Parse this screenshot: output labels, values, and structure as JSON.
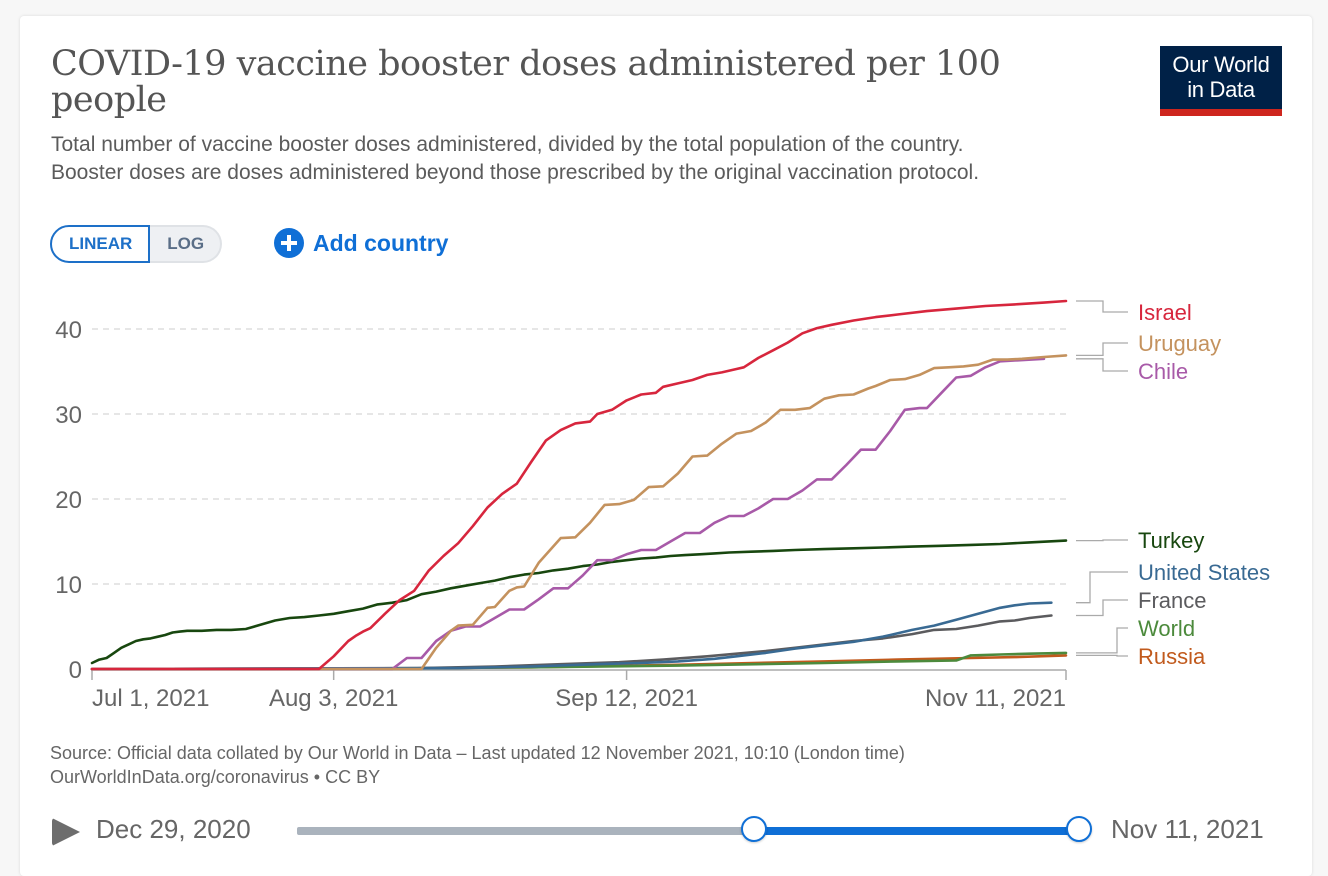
{
  "header": {
    "title": "COVID-19 vaccine booster doses administered per 100 people",
    "subtitle_line1": "Total number of vaccine booster doses administered, divided by the total population of the country.",
    "subtitle_line2": "Booster doses are doses administered beyond those prescribed by the original vaccination protocol.",
    "logo_line1": "Our World",
    "logo_line2": "in Data"
  },
  "controls": {
    "linear_label": "LINEAR",
    "log_label": "LOG",
    "active_scale": "linear",
    "add_country_label": "Add country",
    "add_icon": "plus-circle-icon"
  },
  "footer": {
    "source": "Source: Official data collated by Our World in Data – Last updated 12 November 2021, 10:10 (London time)",
    "license": "OurWorldInData.org/coronavirus • CC BY"
  },
  "timeline": {
    "start_label": "Dec 29, 2020",
    "end_label": "Nov 11, 2021",
    "range_start_fraction": 0.585,
    "range_end_fraction": 1.0,
    "play_icon": "play-icon"
  },
  "colors": {
    "accent": "#0f6fd6",
    "logo_bg": "#002147",
    "logo_bar": "#ce261e"
  },
  "chart_data": {
    "type": "line",
    "title": "COVID-19 vaccine booster doses administered per 100 people",
    "xlabel": "",
    "ylabel": "",
    "x_start": "2021-07-01",
    "x_end": "2021-11-11",
    "x_unit": "days since Jul 1, 2021",
    "x_range_days": [
      0,
      133
    ],
    "ylim": [
      0,
      43.5
    ],
    "grid": "horizontal dashed",
    "legend_placement": "right (line-end labels)",
    "x_ticks": [
      {
        "label": "Jul 1, 2021",
        "day": 0
      },
      {
        "label": "Aug 3, 2021",
        "day": 33
      },
      {
        "label": "Sep 12, 2021",
        "day": 73
      },
      {
        "label": "Nov 11, 2021",
        "day": 133
      }
    ],
    "y_ticks": [
      0,
      10,
      20,
      30,
      40
    ],
    "series": [
      {
        "name": "Israel",
        "color": "#d7263d",
        "points": [
          [
            0,
            0
          ],
          [
            31,
            0
          ],
          [
            33,
            1.5
          ],
          [
            35,
            3.3
          ],
          [
            36,
            3.9
          ],
          [
            37,
            4.4
          ],
          [
            38,
            4.8
          ],
          [
            40,
            6.5
          ],
          [
            42,
            8.1
          ],
          [
            44,
            9.2
          ],
          [
            46,
            11.6
          ],
          [
            48,
            13.3
          ],
          [
            50,
            14.8
          ],
          [
            52,
            16.8
          ],
          [
            54,
            19.0
          ],
          [
            56,
            20.6
          ],
          [
            58,
            21.8
          ],
          [
            60,
            24.4
          ],
          [
            62,
            26.9
          ],
          [
            64,
            28.1
          ],
          [
            66,
            28.9
          ],
          [
            68,
            29.1
          ],
          [
            69,
            30.0
          ],
          [
            71,
            30.5
          ],
          [
            73,
            31.6
          ],
          [
            75,
            32.3
          ],
          [
            77,
            32.5
          ],
          [
            78,
            33.2
          ],
          [
            80,
            33.6
          ],
          [
            82,
            34.0
          ],
          [
            84,
            34.6
          ],
          [
            86,
            34.9
          ],
          [
            88,
            35.3
          ],
          [
            89,
            35.5
          ],
          [
            91,
            36.6
          ],
          [
            93,
            37.5
          ],
          [
            95,
            38.4
          ],
          [
            97,
            39.5
          ],
          [
            99,
            40.1
          ],
          [
            101,
            40.5
          ],
          [
            104,
            41.0
          ],
          [
            107,
            41.4
          ],
          [
            110,
            41.7
          ],
          [
            114,
            42.1
          ],
          [
            118,
            42.4
          ],
          [
            122,
            42.7
          ],
          [
            126,
            42.9
          ],
          [
            130,
            43.1
          ],
          [
            133,
            43.3
          ]
        ]
      },
      {
        "name": "Uruguay",
        "color": "#c4925e",
        "points": [
          [
            0,
            0
          ],
          [
            45,
            0
          ],
          [
            47,
            2.5
          ],
          [
            49,
            4.5
          ],
          [
            50,
            5.1
          ],
          [
            52,
            5.2
          ],
          [
            54,
            7.2
          ],
          [
            55,
            7.3
          ],
          [
            57,
            9.2
          ],
          [
            58,
            9.6
          ],
          [
            59,
            9.7
          ],
          [
            61,
            12.5
          ],
          [
            64,
            15.4
          ],
          [
            66,
            15.5
          ],
          [
            68,
            17.2
          ],
          [
            70,
            19.3
          ],
          [
            72,
            19.4
          ],
          [
            74,
            19.9
          ],
          [
            76,
            21.4
          ],
          [
            78,
            21.5
          ],
          [
            80,
            23.0
          ],
          [
            82,
            25.0
          ],
          [
            84,
            25.1
          ],
          [
            86,
            26.5
          ],
          [
            88,
            27.7
          ],
          [
            90,
            28.0
          ],
          [
            92,
            29.0
          ],
          [
            94,
            30.5
          ],
          [
            96,
            30.5
          ],
          [
            98,
            30.7
          ],
          [
            100,
            31.8
          ],
          [
            102,
            32.2
          ],
          [
            104,
            32.3
          ],
          [
            106,
            33.0
          ],
          [
            107,
            33.3
          ],
          [
            109,
            34.0
          ],
          [
            111,
            34.1
          ],
          [
            113,
            34.6
          ],
          [
            115,
            35.4
          ],
          [
            117,
            35.5
          ],
          [
            119,
            35.6
          ],
          [
            121,
            35.8
          ],
          [
            123,
            36.4
          ],
          [
            125,
            36.4
          ],
          [
            127,
            36.5
          ],
          [
            130,
            36.7
          ],
          [
            133,
            36.9
          ]
        ]
      },
      {
        "name": "Chile",
        "color": "#a85aa8",
        "points": [
          [
            0,
            0
          ],
          [
            41,
            0
          ],
          [
            43,
            1.3
          ],
          [
            45,
            1.3
          ],
          [
            47,
            3.3
          ],
          [
            49,
            4.5
          ],
          [
            51,
            5.0
          ],
          [
            53,
            5.0
          ],
          [
            55,
            6.0
          ],
          [
            57,
            7.0
          ],
          [
            59,
            7.0
          ],
          [
            61,
            8.2
          ],
          [
            63,
            9.5
          ],
          [
            65,
            9.5
          ],
          [
            67,
            11.0
          ],
          [
            69,
            12.8
          ],
          [
            71,
            12.8
          ],
          [
            73,
            13.5
          ],
          [
            75,
            14.0
          ],
          [
            77,
            14.0
          ],
          [
            79,
            15.0
          ],
          [
            81,
            16.0
          ],
          [
            83,
            16.0
          ],
          [
            85,
            17.2
          ],
          [
            87,
            18.0
          ],
          [
            89,
            18.0
          ],
          [
            91,
            18.9
          ],
          [
            93,
            20.0
          ],
          [
            95,
            20.0
          ],
          [
            97,
            21.0
          ],
          [
            99,
            22.3
          ],
          [
            101,
            22.3
          ],
          [
            103,
            24.0
          ],
          [
            105,
            25.8
          ],
          [
            107,
            25.8
          ],
          [
            109,
            28.0
          ],
          [
            111,
            30.5
          ],
          [
            113,
            30.7
          ],
          [
            114,
            30.7
          ],
          [
            116,
            32.5
          ],
          [
            118,
            34.3
          ],
          [
            120,
            34.5
          ],
          [
            122,
            35.5
          ],
          [
            124,
            36.2
          ],
          [
            130,
            36.5
          ]
        ]
      },
      {
        "name": "Turkey",
        "color": "#18470f",
        "points": [
          [
            0,
            0.7
          ],
          [
            1,
            1.1
          ],
          [
            2,
            1.3
          ],
          [
            3,
            1.9
          ],
          [
            4,
            2.5
          ],
          [
            5,
            2.9
          ],
          [
            6,
            3.3
          ],
          [
            7,
            3.5
          ],
          [
            8,
            3.6
          ],
          [
            9,
            3.8
          ],
          [
            10,
            4.0
          ],
          [
            11,
            4.3
          ],
          [
            12,
            4.4
          ],
          [
            13,
            4.5
          ],
          [
            15,
            4.5
          ],
          [
            17,
            4.6
          ],
          [
            19,
            4.6
          ],
          [
            21,
            4.7
          ],
          [
            23,
            5.2
          ],
          [
            25,
            5.7
          ],
          [
            27,
            6.0
          ],
          [
            29,
            6.1
          ],
          [
            31,
            6.3
          ],
          [
            33,
            6.5
          ],
          [
            35,
            6.8
          ],
          [
            37,
            7.1
          ],
          [
            39,
            7.6
          ],
          [
            41,
            7.8
          ],
          [
            43,
            8.1
          ],
          [
            45,
            8.8
          ],
          [
            47,
            9.1
          ],
          [
            49,
            9.5
          ],
          [
            51,
            9.8
          ],
          [
            53,
            10.1
          ],
          [
            55,
            10.4
          ],
          [
            57,
            10.8
          ],
          [
            59,
            11.1
          ],
          [
            61,
            11.3
          ],
          [
            63,
            11.6
          ],
          [
            65,
            11.8
          ],
          [
            67,
            12.1
          ],
          [
            69,
            12.3
          ],
          [
            71,
            12.6
          ],
          [
            73,
            12.8
          ],
          [
            75,
            13.0
          ],
          [
            77,
            13.1
          ],
          [
            79,
            13.3
          ],
          [
            81,
            13.4
          ],
          [
            83,
            13.5
          ],
          [
            85,
            13.6
          ],
          [
            87,
            13.7
          ],
          [
            90,
            13.8
          ],
          [
            93,
            13.9
          ],
          [
            96,
            14.0
          ],
          [
            100,
            14.1
          ],
          [
            104,
            14.2
          ],
          [
            108,
            14.3
          ],
          [
            112,
            14.4
          ],
          [
            116,
            14.5
          ],
          [
            120,
            14.6
          ],
          [
            124,
            14.7
          ],
          [
            128,
            14.9
          ],
          [
            133,
            15.1
          ]
        ]
      },
      {
        "name": "United States",
        "color": "#396a93",
        "points": [
          [
            0,
            0
          ],
          [
            50,
            0.1
          ],
          [
            60,
            0.3
          ],
          [
            70,
            0.6
          ],
          [
            75,
            0.7
          ],
          [
            80,
            0.9
          ],
          [
            85,
            1.2
          ],
          [
            88,
            1.5
          ],
          [
            92,
            1.9
          ],
          [
            96,
            2.4
          ],
          [
            100,
            2.8
          ],
          [
            104,
            3.2
          ],
          [
            108,
            3.8
          ],
          [
            112,
            4.6
          ],
          [
            115,
            5.1
          ],
          [
            118,
            5.8
          ],
          [
            121,
            6.5
          ],
          [
            124,
            7.2
          ],
          [
            126,
            7.5
          ],
          [
            128,
            7.7
          ],
          [
            131,
            7.8
          ]
        ]
      },
      {
        "name": "France",
        "color": "#5b5b5e",
        "points": [
          [
            0,
            0
          ],
          [
            45,
            0.1
          ],
          [
            55,
            0.3
          ],
          [
            65,
            0.6
          ],
          [
            72,
            0.8
          ],
          [
            78,
            1.1
          ],
          [
            84,
            1.5
          ],
          [
            88,
            1.8
          ],
          [
            92,
            2.1
          ],
          [
            96,
            2.5
          ],
          [
            100,
            2.9
          ],
          [
            104,
            3.3
          ],
          [
            108,
            3.6
          ],
          [
            112,
            4.1
          ],
          [
            115,
            4.6
          ],
          [
            118,
            4.7
          ],
          [
            121,
            5.1
          ],
          [
            124,
            5.6
          ],
          [
            126,
            5.7
          ],
          [
            128,
            6.0
          ],
          [
            131,
            6.3
          ]
        ]
      },
      {
        "name": "World",
        "color": "#4c8a3c",
        "points": [
          [
            0,
            0
          ],
          [
            40,
            0.05
          ],
          [
            60,
            0.2
          ],
          [
            80,
            0.4
          ],
          [
            100,
            0.7
          ],
          [
            110,
            0.9
          ],
          [
            118,
            1.0
          ],
          [
            120,
            1.6
          ],
          [
            124,
            1.7
          ],
          [
            128,
            1.8
          ],
          [
            133,
            1.9
          ]
        ]
      },
      {
        "name": "Russia",
        "color": "#c15a1d",
        "points": [
          [
            0,
            0
          ],
          [
            40,
            0.05
          ],
          [
            60,
            0.2
          ],
          [
            80,
            0.5
          ],
          [
            100,
            0.9
          ],
          [
            110,
            1.1
          ],
          [
            120,
            1.3
          ],
          [
            126,
            1.4
          ],
          [
            133,
            1.6
          ]
        ]
      }
    ],
    "labels": [
      {
        "name": "Israel",
        "color": "#d7263d",
        "value": 43.3
      },
      {
        "name": "Uruguay",
        "color": "#c4925e",
        "value": 36.9
      },
      {
        "name": "Chile",
        "color": "#a85aa8",
        "value": 36.5
      },
      {
        "name": "Turkey",
        "color": "#18470f",
        "value": 15.1
      },
      {
        "name": "United States",
        "color": "#396a93",
        "value": 7.8
      },
      {
        "name": "France",
        "color": "#5b5b5e",
        "value": 6.3
      },
      {
        "name": "World",
        "color": "#4c8a3c",
        "value": 1.9
      },
      {
        "name": "Russia",
        "color": "#c15a1d",
        "value": 1.6
      }
    ]
  }
}
